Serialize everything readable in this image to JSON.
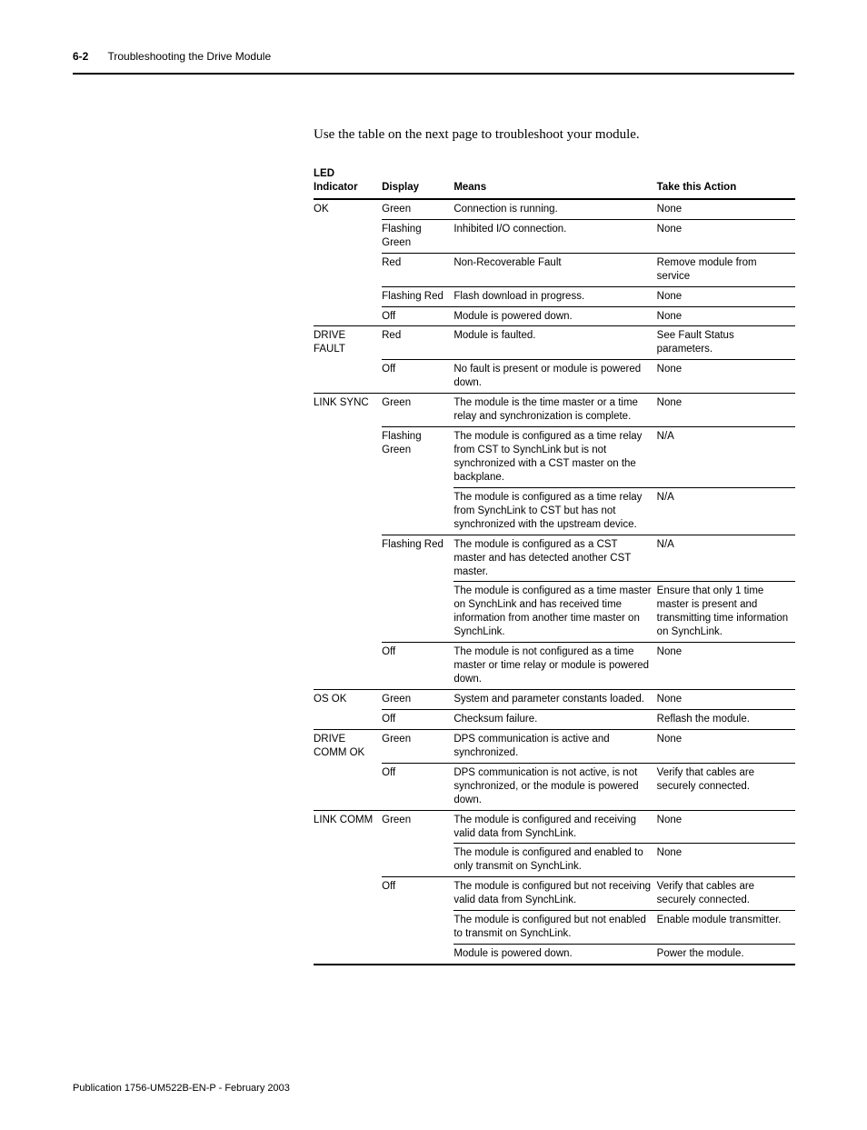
{
  "header": {
    "page_number": "6-2",
    "section_title": "Troubleshooting the Drive Module"
  },
  "intro_text": "Use the table on the next page to troubleshoot your module.",
  "table": {
    "headers": {
      "led": "LED Indicator",
      "display": "Display",
      "means": "Means",
      "action": "Take this Action"
    },
    "rows": [
      {
        "led": "OK",
        "display": "Green",
        "means": "Connection is running.",
        "action": "None",
        "led_border": "bt2",
        "disp_border": "bt2",
        "means_border": "bt2",
        "action_border": "bt2"
      },
      {
        "led": "",
        "display": "Flashing Green",
        "means": "Inhibited I/O connection.",
        "action": "None",
        "disp_border": "bt1",
        "means_border": "bt1",
        "action_border": "bt1"
      },
      {
        "led": "",
        "display": "Red",
        "means": "Non-Recoverable Fault",
        "action": "Remove module from service",
        "disp_border": "bt1",
        "means_border": "bt1",
        "action_border": "bt1"
      },
      {
        "led": "",
        "display": "Flashing Red",
        "means": "Flash download in progress.",
        "action": "None",
        "disp_border": "bt1",
        "means_border": "bt1",
        "action_border": "bt1"
      },
      {
        "led": "",
        "display": "Off",
        "means": "Module is powered down.",
        "action": "None",
        "disp_border": "bt1",
        "means_border": "bt1",
        "action_border": "bt1"
      },
      {
        "led": "DRIVE FAULT",
        "display": "Red",
        "means": "Module is faulted.",
        "action": "See Fault Status parameters.",
        "led_border": "bt1",
        "disp_border": "bt1",
        "means_border": "bt1",
        "action_border": "bt1"
      },
      {
        "led": "",
        "display": "Off",
        "means": "No fault is present or module is powered down.",
        "action": "None",
        "disp_border": "bt1",
        "means_border": "bt1",
        "action_border": "bt1"
      },
      {
        "led": "LINK SYNC",
        "display": "Green",
        "means": "The module is the time master or a time relay and synchronization is complete.",
        "action": "None",
        "led_border": "bt1",
        "disp_border": "bt1",
        "means_border": "bt1",
        "action_border": "bt1"
      },
      {
        "led": "",
        "display": "Flashing Green",
        "means": "The module is configured as a time relay from CST to SynchLink but is not synchronized with a CST master on the backplane.",
        "action": "N/A",
        "disp_border": "bt1",
        "means_border": "bt1",
        "action_border": "bt1"
      },
      {
        "led": "",
        "display": "",
        "means": "The module is configured as a time relay from SynchLink to CST but has not synchronized with the upstream device.",
        "action": "N/A",
        "means_border": "bt1",
        "action_border": "bt1"
      },
      {
        "led": "",
        "display": "Flashing Red",
        "means": "The module is configured as a CST master and has detected another CST master.",
        "action": "N/A",
        "disp_border": "bt1",
        "means_border": "bt1",
        "action_border": "bt1"
      },
      {
        "led": "",
        "display": "",
        "means": "The module is configured as a time master on SynchLink and has received time information from another time master on SynchLink.",
        "action": "Ensure that only 1 time master is present and transmitting time information on SynchLink.",
        "means_border": "bt1",
        "action_border": "bt1"
      },
      {
        "led": "",
        "display": "Off",
        "means": "The module is not configured as a time master or time relay or module is powered down.",
        "action": "None",
        "disp_border": "bt1",
        "means_border": "bt1",
        "action_border": "bt1"
      },
      {
        "led": "OS OK",
        "display": "Green",
        "means": "System and parameter constants loaded.",
        "action": "None",
        "led_border": "bt1",
        "disp_border": "bt1",
        "means_border": "bt1",
        "action_border": "bt1"
      },
      {
        "led": "",
        "display": "Off",
        "means": "Checksum failure.",
        "action": "Reflash the module.",
        "disp_border": "bt1",
        "means_border": "bt1",
        "action_border": "bt1"
      },
      {
        "led": "DRIVE COMM OK",
        "display": "Green",
        "means": "DPS communication is active and synchronized.",
        "action": "None",
        "led_border": "bt1",
        "disp_border": "bt1",
        "means_border": "bt1",
        "action_border": "bt1"
      },
      {
        "led": "",
        "display": "Off",
        "means": "DPS communication is not active, is not synchronized, or the module is powered down.",
        "action": "Verify that cables are securely connected.",
        "disp_border": "bt1",
        "means_border": "bt1",
        "action_border": "bt1"
      },
      {
        "led": "LINK COMM",
        "display": "Green",
        "means": "The module is configured and receiving valid data from SynchLink.",
        "action": "None",
        "led_border": "bt1",
        "disp_border": "bt1",
        "means_border": "bt1",
        "action_border": "bt1"
      },
      {
        "led": "",
        "display": "",
        "means": "The module is configured and enabled to only transmit on SynchLink.",
        "action": "None",
        "means_border": "bt1",
        "action_border": "bt1"
      },
      {
        "led": "",
        "display": "Off",
        "means": "The module is configured but not receiving valid data from SynchLink.",
        "action": "Verify that cables are securely connected.",
        "disp_border": "bt1",
        "means_border": "bt1",
        "action_border": "bt1"
      },
      {
        "led": "",
        "display": "",
        "means": "The module is configured but not enabled to transmit on SynchLink.",
        "action": "Enable module transmitter.",
        "means_border": "bt1",
        "action_border": "bt1"
      },
      {
        "led": "",
        "display": "",
        "means": "Module is powered down.",
        "action": "Power the module.",
        "led_border": "bb2",
        "disp_border": "bb2",
        "means_border": "bt1 bb2",
        "action_border": "bt1 bb2"
      }
    ]
  },
  "footer": "Publication 1756-UM522B-EN-P - February 2003"
}
